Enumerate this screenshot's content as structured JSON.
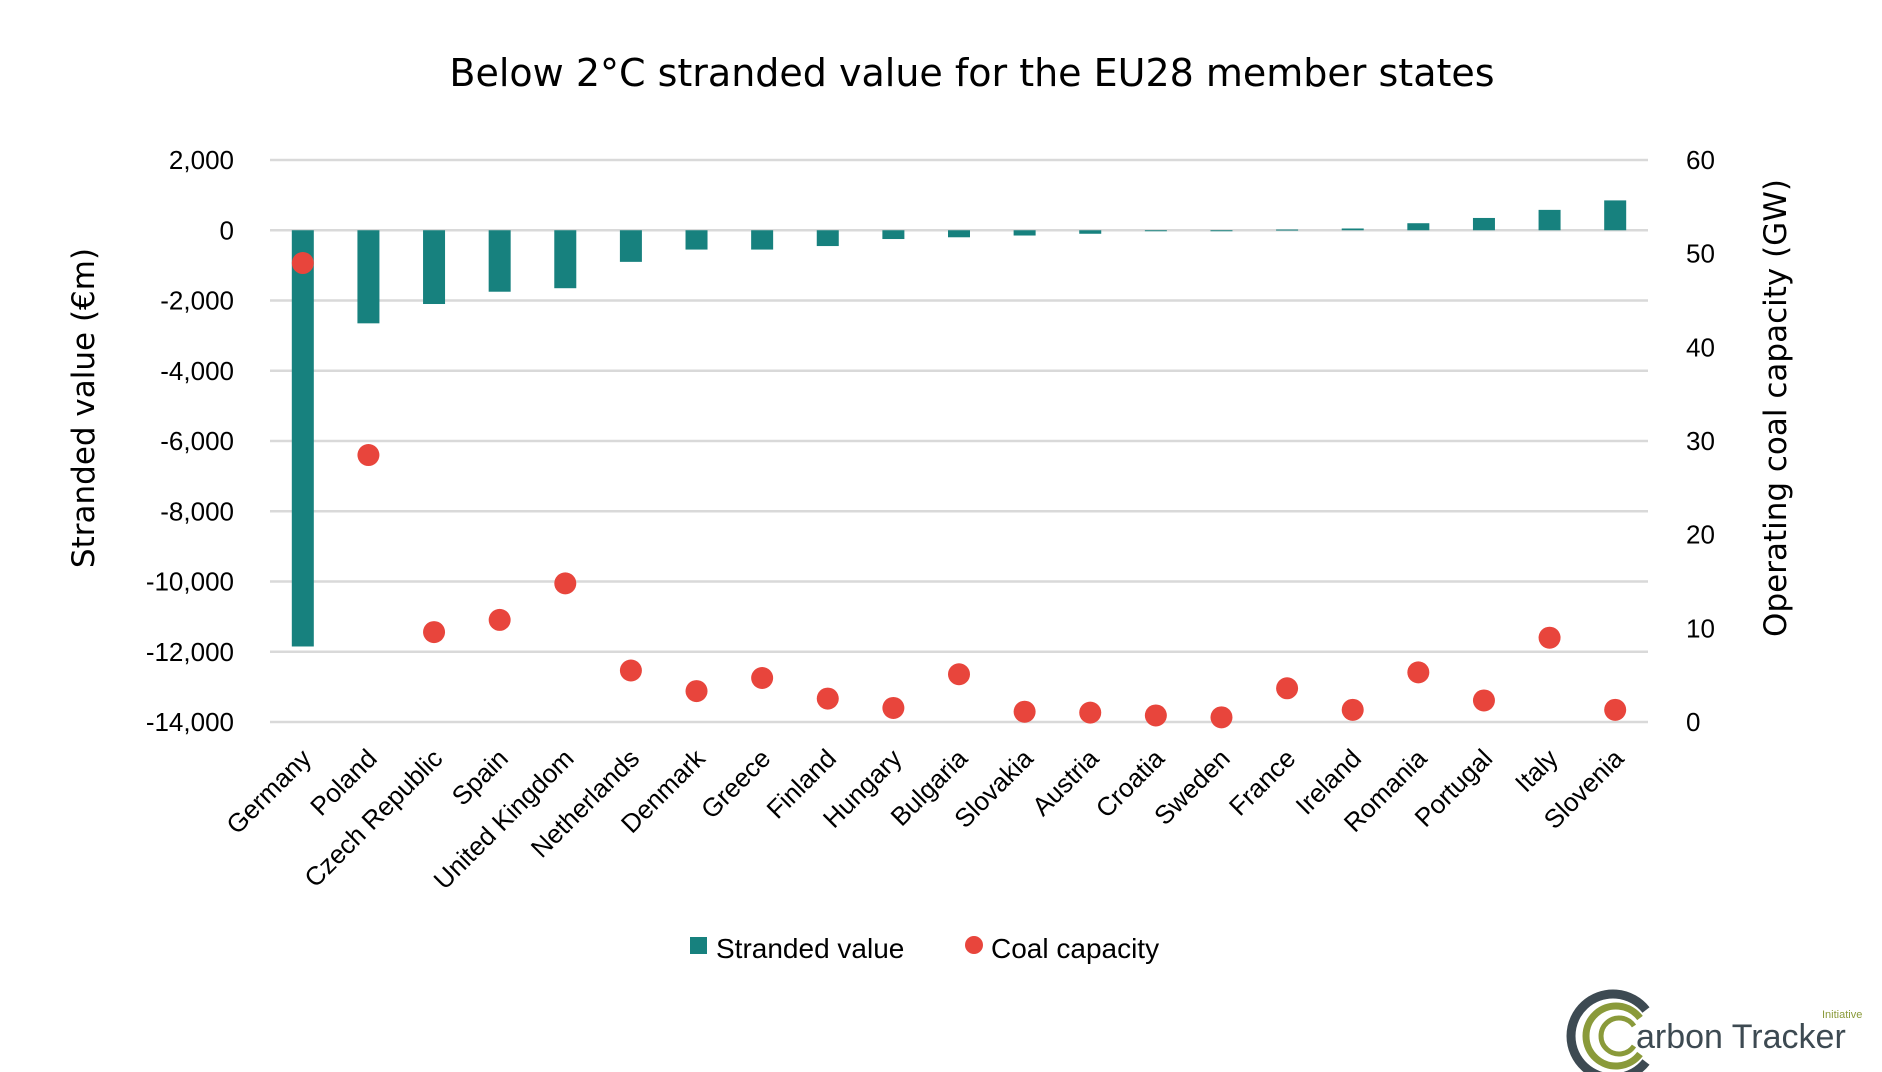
{
  "chart_data": {
    "type": "bar",
    "title": "Below 2°C stranded value for the EU28 member states",
    "xlabel": "",
    "ylabel": "Stranded value (€m)",
    "y2label": "Operating coal capacity (GW)",
    "ylim": [
      -14000,
      2000
    ],
    "y2lim": [
      0,
      60
    ],
    "yticks": [
      "2,000",
      "0",
      "-2,000",
      "-4,000",
      "-6,000",
      "-8,000",
      "-10,000",
      "-12,000",
      "-14,000"
    ],
    "ytick_values": [
      2000,
      0,
      -2000,
      -4000,
      -6000,
      -8000,
      -10000,
      -12000,
      -14000
    ],
    "y2ticks": [
      "60",
      "50",
      "40",
      "30",
      "20",
      "10",
      "0"
    ],
    "y2tick_values": [
      60,
      50,
      40,
      30,
      20,
      10,
      0
    ],
    "grid": true,
    "legend_position": "bottom",
    "categories": [
      "Germany",
      "Poland",
      "Czech Republic",
      "Spain",
      "United Kingdom",
      "Netherlands",
      "Denmark",
      "Greece",
      "Finland",
      "Hungary",
      "Bulgaria",
      "Slovakia",
      "Austria",
      "Croatia",
      "Sweden",
      "France",
      "Ireland",
      "Romania",
      "Portugal",
      "Italy",
      "Slovenia"
    ],
    "series": [
      {
        "name": "Stranded value",
        "type": "bar",
        "axis": "left",
        "color": "#17817e",
        "values": [
          -11850,
          -2650,
          -2100,
          -1750,
          -1650,
          -900,
          -550,
          -550,
          -450,
          -250,
          -200,
          -150,
          -100,
          -20,
          -10,
          20,
          50,
          200,
          350,
          580,
          850
        ]
      },
      {
        "name": "Coal capacity",
        "type": "scatter",
        "axis": "right",
        "color": "#e8453c",
        "values": [
          49,
          28.5,
          9.6,
          10.9,
          14.8,
          5.5,
          3.3,
          4.7,
          2.5,
          1.5,
          5.1,
          1.1,
          1.0,
          0.7,
          0.5,
          3.6,
          1.3,
          5.3,
          2.3,
          9.0,
          1.3
        ]
      }
    ]
  },
  "legend": {
    "items": [
      {
        "label": "Stranded value",
        "color": "#17817e",
        "marker": "square"
      },
      {
        "label": "Coal capacity",
        "color": "#e8453c",
        "marker": "circle"
      }
    ]
  },
  "logo": {
    "name": "Carbon Tracker",
    "text": "arbon Tracker",
    "sub": "Initiative"
  }
}
